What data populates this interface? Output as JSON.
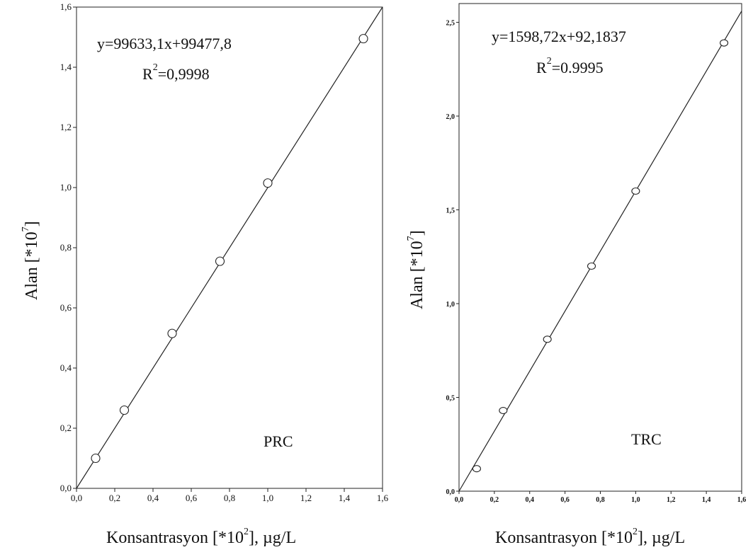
{
  "chart_data": [
    {
      "type": "scatter",
      "title": "",
      "panel_label": "PRC",
      "equation": "y=99633,1x+99477,8",
      "r2_prefix": "R",
      "r2_exp": "2",
      "r2_value": "=0,9998",
      "xlabel_prefix": "Konsantrasyon [*10",
      "xlabel_exp": "2",
      "xlabel_suffix": "], µg/L",
      "ylabel_prefix": "Alan [*10",
      "ylabel_exp": "7",
      "ylabel_suffix": "]",
      "xlim": [
        0,
        1.6
      ],
      "ylim": [
        0,
        1.6
      ],
      "x_ticks": [
        "0,0",
        "0,2",
        "0,4",
        "0,6",
        "0,8",
        "1,0",
        "1,2",
        "1,4",
        "1,6"
      ],
      "y_ticks": [
        "0,0",
        "0,2",
        "0,4",
        "0,6",
        "0,8",
        "1,0",
        "1,2",
        "1,4",
        "1,6"
      ],
      "x_tick_values": [
        0,
        0.2,
        0.4,
        0.6,
        0.8,
        1.0,
        1.2,
        1.4,
        1.6
      ],
      "y_tick_values": [
        0,
        0.2,
        0.4,
        0.6,
        0.8,
        1.0,
        1.2,
        1.4,
        1.6
      ],
      "points": [
        {
          "x": 0.1,
          "y": 0.1
        },
        {
          "x": 0.25,
          "y": 0.26
        },
        {
          "x": 0.5,
          "y": 0.515
        },
        {
          "x": 0.75,
          "y": 0.755
        },
        {
          "x": 1.0,
          "y": 1.015
        },
        {
          "x": 1.5,
          "y": 1.495
        }
      ],
      "fit_line": {
        "x": [
          0,
          1.6
        ],
        "y": [
          0,
          1.6
        ]
      },
      "grid": false
    },
    {
      "type": "scatter",
      "title": "",
      "panel_label": "TRC",
      "equation": "y=1598,72x+92,1837",
      "r2_prefix": "R",
      "r2_exp": "2",
      "r2_value": "=0.9995",
      "xlabel_prefix": "Konsantrasyon [*10",
      "xlabel_exp": "2",
      "xlabel_suffix": "], µg/L",
      "ylabel_prefix": "Alan [*10",
      "ylabel_exp": "7",
      "ylabel_suffix": "]",
      "xlim": [
        0,
        1.6
      ],
      "ylim": [
        0,
        2.6
      ],
      "x_ticks": [
        "0,0",
        "0,2",
        "0,4",
        "0,6",
        "0,8",
        "1,0",
        "1,2",
        "1,4",
        "1,6"
      ],
      "y_ticks": [
        "0,0",
        "0,5",
        "1,0",
        "1,5",
        "2,0",
        "2,5"
      ],
      "x_tick_values": [
        0,
        0.2,
        0.4,
        0.6,
        0.8,
        1.0,
        1.2,
        1.4,
        1.6
      ],
      "y_tick_values": [
        0,
        0.5,
        1.0,
        1.5,
        2.0,
        2.5
      ],
      "points": [
        {
          "x": 0.1,
          "y": 0.12
        },
        {
          "x": 0.25,
          "y": 0.43
        },
        {
          "x": 0.5,
          "y": 0.81
        },
        {
          "x": 0.75,
          "y": 1.2
        },
        {
          "x": 1.0,
          "y": 1.6
        },
        {
          "x": 1.5,
          "y": 2.39
        }
      ],
      "fit_line": {
        "x": [
          0,
          1.6
        ],
        "y": [
          0,
          2.56
        ]
      },
      "grid": false
    }
  ]
}
